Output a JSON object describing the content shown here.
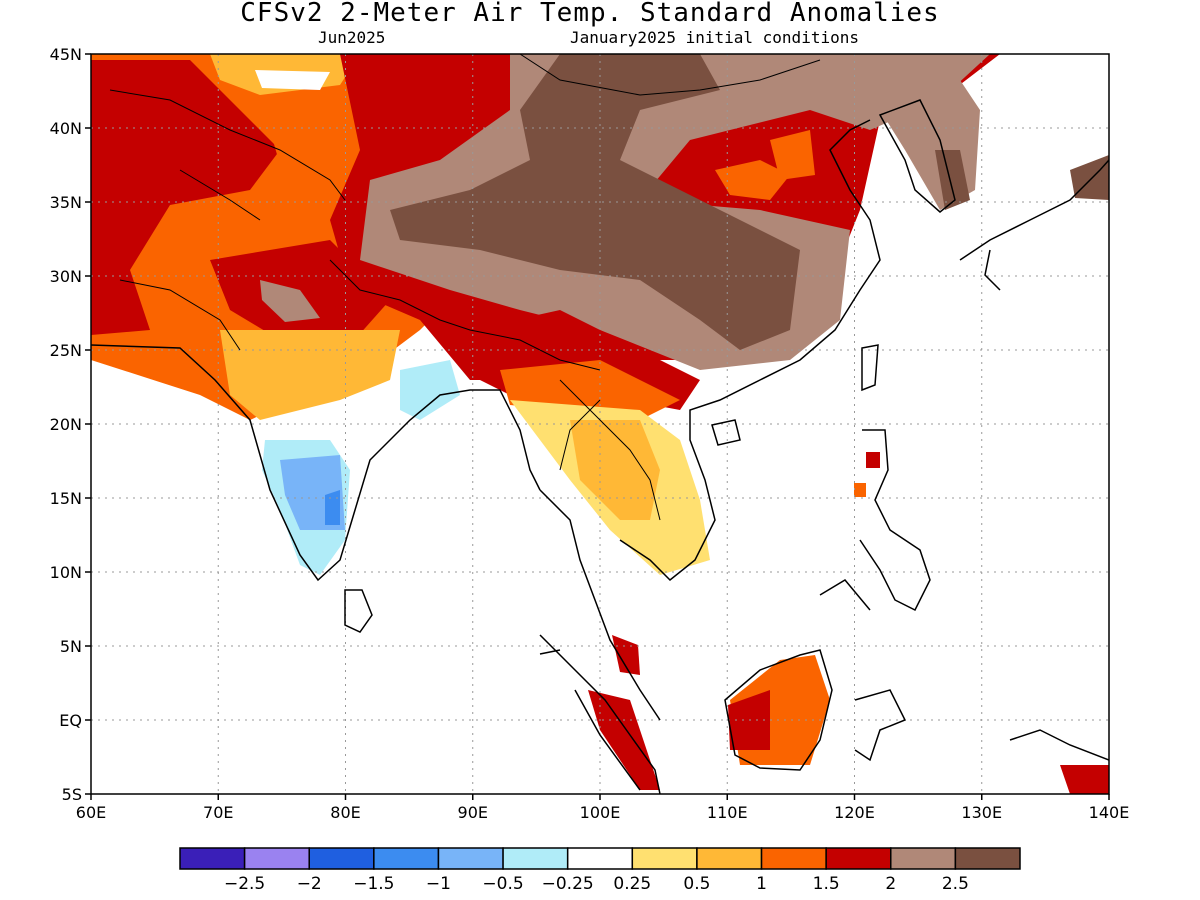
{
  "title": "CFSv2 2-Meter Air Temp. Standard Anomalies",
  "valid_month": "Jun2025",
  "initial_conditions": "January2025 initial conditions",
  "map": {
    "lon_range": [
      60,
      140
    ],
    "lat_range": [
      -5,
      45
    ],
    "lon_ticks": [
      "60E",
      "70E",
      "80E",
      "90E",
      "100E",
      "110E",
      "120E",
      "130E",
      "140E"
    ],
    "lat_ticks": [
      "45N",
      "40N",
      "35N",
      "30N",
      "25N",
      "20N",
      "15N",
      "10N",
      "5N",
      "EQ",
      "5S"
    ],
    "grid": "dotted"
  },
  "colorbar": {
    "colors": [
      "#3a1fb8",
      "#9a82f0",
      "#1f5fe0",
      "#3c8cf0",
      "#78b4f8",
      "#b0ecf8",
      "#ffffff",
      "#ffe070",
      "#ffb836",
      "#fa6400",
      "#c40000",
      "#b08878",
      "#7a5040"
    ],
    "labels": [
      "-2.5",
      "-2",
      "-1.5",
      "-1",
      "-0.5",
      "-0.25",
      "0.25",
      "0.5",
      "1",
      "1.5",
      "2",
      "2.5"
    ]
  }
}
